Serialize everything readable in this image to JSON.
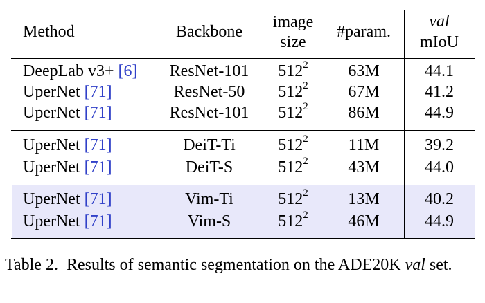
{
  "table": {
    "headers": {
      "method": "Method",
      "backbone": "Backbone",
      "image_size_line1": "image",
      "image_size_line2": "size",
      "params": "#param.",
      "val_line1": "val",
      "val_line2": "mIoU"
    },
    "groups": [
      {
        "rows": [
          {
            "method": "DeepLab v3+",
            "cite": "[6]",
            "cite_num": "6",
            "backbone": "ResNet-101",
            "size_base": "512",
            "size_exp": "2",
            "params": "63M",
            "miou": "44.1"
          },
          {
            "method": "UperNet",
            "cite": "[71]",
            "cite_num": "71",
            "backbone": "ResNet-50",
            "size_base": "512",
            "size_exp": "2",
            "params": "67M",
            "miou": "41.2"
          },
          {
            "method": "UperNet",
            "cite": "[71]",
            "cite_num": "71",
            "backbone": "ResNet-101",
            "size_base": "512",
            "size_exp": "2",
            "params": "86M",
            "miou": "44.9"
          }
        ]
      },
      {
        "rows": [
          {
            "method": "UperNet",
            "cite": "[71]",
            "cite_num": "71",
            "backbone": "DeiT-Ti",
            "size_base": "512",
            "size_exp": "2",
            "params": "11M",
            "miou": "39.2"
          },
          {
            "method": "UperNet",
            "cite": "[71]",
            "cite_num": "71",
            "backbone": "DeiT-S",
            "size_base": "512",
            "size_exp": "2",
            "params": "43M",
            "miou": "44.0"
          }
        ]
      },
      {
        "highlight_color": "#e8e8fa",
        "rows": [
          {
            "method": "UperNet",
            "cite": "[71]",
            "cite_num": "71",
            "backbone": "Vim-Ti",
            "size_base": "512",
            "size_exp": "2",
            "params": "13M",
            "miou": "40.2"
          },
          {
            "method": "UperNet",
            "cite": "[71]",
            "cite_num": "71",
            "backbone": "Vim-S",
            "size_base": "512",
            "size_exp": "2",
            "params": "46M",
            "miou": "44.9"
          }
        ]
      }
    ],
    "cite_color": "#3040c8"
  },
  "caption": {
    "label": "Table 2.",
    "text_before": "Results of semantic segmentation on the ADE20K",
    "italic_word": "val",
    "text_after": "set."
  }
}
